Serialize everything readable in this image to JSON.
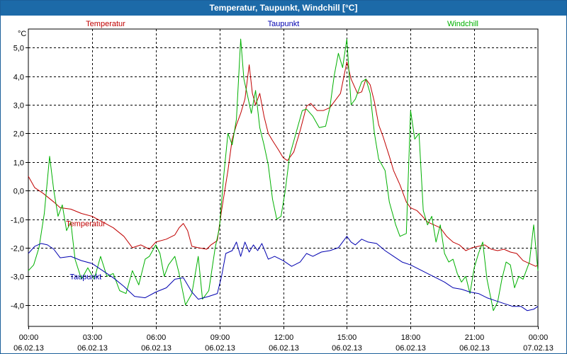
{
  "window": {
    "title": "Temperatur, Taupunkt, Windchill [°C]"
  },
  "chart_data": {
    "type": "line",
    "title": "Temperatur, Taupunkt, Windchill [°C]",
    "ylabel": "°C",
    "xlabel": "",
    "ylim": [
      -4.75,
      5.65
    ],
    "xlim": [
      0,
      24
    ],
    "grid": true,
    "yticks": [
      5,
      4,
      3,
      2,
      1,
      0,
      -1,
      -2,
      -3,
      -4
    ],
    "ytick_labels": [
      "5,0",
      "4,0",
      "3,0",
      "2,0",
      "1,0",
      "0,0",
      "-1,0",
      "-2,0",
      "-3,0",
      "-4,0"
    ],
    "xticks": [
      {
        "x": 0,
        "time": "00:00",
        "date": "06.02.13"
      },
      {
        "x": 3,
        "time": "03:00",
        "date": "06.02.13"
      },
      {
        "x": 6,
        "time": "06:00",
        "date": "06.02.13"
      },
      {
        "x": 9,
        "time": "09:00",
        "date": "06.02.13"
      },
      {
        "x": 12,
        "time": "12:00",
        "date": "06.02.13"
      },
      {
        "x": 15,
        "time": "15:00",
        "date": "06.02.13"
      },
      {
        "x": 18,
        "time": "18:00",
        "date": "06.02.13"
      },
      {
        "x": 21,
        "time": "21:00",
        "date": "06.02.13"
      },
      {
        "x": 24,
        "time": "00:00",
        "date": "07.02.13"
      }
    ],
    "legend": [
      {
        "name": "Temperatur",
        "color": "#c00000",
        "position": "top-left"
      },
      {
        "name": "Taupunkt",
        "color": "#0000b0",
        "position": "top-center"
      },
      {
        "name": "Windchill",
        "color": "#00b000",
        "position": "top-right"
      }
    ],
    "annotations": [
      {
        "text": "Temperatur",
        "x": 2.7,
        "y": -1.25,
        "color": "#c00000"
      },
      {
        "text": "Taupunkt",
        "x": 2.7,
        "y": -3.1,
        "color": "#0000b0"
      }
    ],
    "series": [
      {
        "name": "Temperatur",
        "color": "#c00000",
        "points": [
          [
            0,
            0.5
          ],
          [
            0.3,
            0.1
          ],
          [
            0.7,
            -0.1
          ],
          [
            1.2,
            -0.4
          ],
          [
            1.5,
            -0.6
          ],
          [
            2,
            -0.65
          ],
          [
            2.5,
            -0.8
          ],
          [
            3,
            -0.9
          ],
          [
            3.5,
            -1.1
          ],
          [
            4,
            -1.3
          ],
          [
            4.5,
            -1.6
          ],
          [
            4.9,
            -2.0
          ],
          [
            5.3,
            -1.9
          ],
          [
            5.7,
            -2.05
          ],
          [
            6,
            -1.8
          ],
          [
            6.5,
            -1.7
          ],
          [
            6.9,
            -1.55
          ],
          [
            7.1,
            -1.3
          ],
          [
            7.3,
            -1.15
          ],
          [
            7.5,
            -1.4
          ],
          [
            7.7,
            -1.95
          ],
          [
            8,
            -2.0
          ],
          [
            8.4,
            -2.05
          ],
          [
            8.6,
            -1.9
          ],
          [
            8.9,
            -1.75
          ],
          [
            9.1,
            -0.7
          ],
          [
            9.4,
            0.7
          ],
          [
            9.6,
            1.8
          ],
          [
            9.8,
            2.3
          ],
          [
            10,
            2.7
          ],
          [
            10.2,
            3.2
          ],
          [
            10.4,
            4.4
          ],
          [
            10.55,
            3.4
          ],
          [
            10.7,
            3.0
          ],
          [
            10.9,
            3.4
          ],
          [
            11.1,
            2.6
          ],
          [
            11.3,
            2.0
          ],
          [
            11.5,
            1.75
          ],
          [
            11.8,
            1.4
          ],
          [
            12,
            1.15
          ],
          [
            12.2,
            1.05
          ],
          [
            12.5,
            1.35
          ],
          [
            12.8,
            2.1
          ],
          [
            13.1,
            2.95
          ],
          [
            13.3,
            3.05
          ],
          [
            13.6,
            2.8
          ],
          [
            13.9,
            2.8
          ],
          [
            14.2,
            2.9
          ],
          [
            14.5,
            3.2
          ],
          [
            14.7,
            3.4
          ],
          [
            15.0,
            4.5
          ],
          [
            15.2,
            3.9
          ],
          [
            15.5,
            3.4
          ],
          [
            15.7,
            3.45
          ],
          [
            15.9,
            3.9
          ],
          [
            16.1,
            3.7
          ],
          [
            16.3,
            3.1
          ],
          [
            16.5,
            2.3
          ],
          [
            16.7,
            1.9
          ],
          [
            17,
            1.2
          ],
          [
            17.2,
            0.7
          ],
          [
            17.5,
            0.2
          ],
          [
            17.8,
            -0.4
          ],
          [
            18,
            -0.6
          ],
          [
            18.3,
            -0.7
          ],
          [
            18.5,
            -0.85
          ],
          [
            18.8,
            -1.1
          ],
          [
            19.1,
            -1.2
          ],
          [
            19.4,
            -1.3
          ],
          [
            19.7,
            -1.6
          ],
          [
            20,
            -1.8
          ],
          [
            20.3,
            -1.9
          ],
          [
            20.6,
            -2.1
          ],
          [
            20.9,
            -2.0
          ],
          [
            21.2,
            -1.95
          ],
          [
            21.5,
            -1.9
          ],
          [
            21.8,
            -2.05
          ],
          [
            22.1,
            -2.1
          ],
          [
            22.4,
            -2.05
          ],
          [
            22.7,
            -2.15
          ],
          [
            23,
            -2.2
          ],
          [
            23.3,
            -2.45
          ],
          [
            23.6,
            -2.55
          ],
          [
            23.9,
            -2.65
          ],
          [
            24,
            -2.6
          ]
        ]
      },
      {
        "name": "Taupunkt",
        "color": "#0000b0",
        "points": [
          [
            0,
            -2.2
          ],
          [
            0.3,
            -1.95
          ],
          [
            0.6,
            -1.85
          ],
          [
            0.9,
            -1.9
          ],
          [
            1.2,
            -2.05
          ],
          [
            1.5,
            -2.35
          ],
          [
            2,
            -2.3
          ],
          [
            2.5,
            -2.45
          ],
          [
            3,
            -2.55
          ],
          [
            3.5,
            -2.8
          ],
          [
            4,
            -3.05
          ],
          [
            4.5,
            -3.35
          ],
          [
            5,
            -3.7
          ],
          [
            5.5,
            -3.75
          ],
          [
            6,
            -3.55
          ],
          [
            6.5,
            -3.4
          ],
          [
            6.9,
            -3.1
          ],
          [
            7.3,
            -3.05
          ],
          [
            7.7,
            -3.55
          ],
          [
            8,
            -3.8
          ],
          [
            8.5,
            -3.7
          ],
          [
            8.9,
            -3.6
          ],
          [
            9.1,
            -3.0
          ],
          [
            9.3,
            -2.2
          ],
          [
            9.6,
            -2.1
          ],
          [
            9.8,
            -1.8
          ],
          [
            10.0,
            -2.3
          ],
          [
            10.2,
            -1.8
          ],
          [
            10.4,
            -2.15
          ],
          [
            10.6,
            -1.9
          ],
          [
            10.8,
            -2.1
          ],
          [
            11.0,
            -1.85
          ],
          [
            11.3,
            -2.4
          ],
          [
            11.6,
            -2.3
          ],
          [
            12,
            -2.45
          ],
          [
            12.4,
            -2.65
          ],
          [
            12.8,
            -2.5
          ],
          [
            13.1,
            -2.2
          ],
          [
            13.4,
            -2.3
          ],
          [
            13.8,
            -2.15
          ],
          [
            14.2,
            -2.1
          ],
          [
            14.6,
            -2.0
          ],
          [
            15.0,
            -1.6
          ],
          [
            15.2,
            -1.8
          ],
          [
            15.4,
            -1.9
          ],
          [
            15.7,
            -1.7
          ],
          [
            16,
            -1.8
          ],
          [
            16.4,
            -1.85
          ],
          [
            16.8,
            -2.1
          ],
          [
            17.2,
            -2.3
          ],
          [
            17.6,
            -2.5
          ],
          [
            18,
            -2.6
          ],
          [
            18.4,
            -2.75
          ],
          [
            18.8,
            -2.9
          ],
          [
            19.2,
            -3.05
          ],
          [
            19.6,
            -3.2
          ],
          [
            20,
            -3.4
          ],
          [
            20.4,
            -3.45
          ],
          [
            20.8,
            -3.55
          ],
          [
            21.2,
            -3.6
          ],
          [
            21.6,
            -3.75
          ],
          [
            22,
            -3.85
          ],
          [
            22.4,
            -3.95
          ],
          [
            22.8,
            -4.05
          ],
          [
            23.2,
            -4.05
          ],
          [
            23.5,
            -4.2
          ],
          [
            23.8,
            -4.15
          ],
          [
            24,
            -4.05
          ]
        ]
      },
      {
        "name": "Windchill",
        "color": "#00b000",
        "points": [
          [
            0,
            -2.8
          ],
          [
            0.25,
            -2.6
          ],
          [
            0.5,
            -2.0
          ],
          [
            0.75,
            -0.8
          ],
          [
            1.0,
            1.2
          ],
          [
            1.2,
            0.0
          ],
          [
            1.4,
            -0.9
          ],
          [
            1.6,
            -0.5
          ],
          [
            1.8,
            -1.4
          ],
          [
            2.0,
            -1.1
          ],
          [
            2.2,
            -2.4
          ],
          [
            2.5,
            -3.1
          ],
          [
            2.8,
            -2.7
          ],
          [
            3.1,
            -3.1
          ],
          [
            3.4,
            -2.3
          ],
          [
            3.7,
            -3.0
          ],
          [
            4.0,
            -2.9
          ],
          [
            4.3,
            -3.5
          ],
          [
            4.6,
            -3.6
          ],
          [
            4.9,
            -2.8
          ],
          [
            5.2,
            -3.3
          ],
          [
            5.5,
            -2.4
          ],
          [
            5.7,
            -2.3
          ],
          [
            6.0,
            -1.9
          ],
          [
            6.2,
            -2.2
          ],
          [
            6.4,
            -3.0
          ],
          [
            6.6,
            -2.6
          ],
          [
            6.9,
            -2.3
          ],
          [
            7.1,
            -2.9
          ],
          [
            7.4,
            -4.0
          ],
          [
            7.7,
            -3.6
          ],
          [
            8.0,
            -2.3
          ],
          [
            8.2,
            -3.8
          ],
          [
            8.5,
            -3.5
          ],
          [
            8.8,
            -2.0
          ],
          [
            9.0,
            -1.3
          ],
          [
            9.2,
            0.5
          ],
          [
            9.4,
            2.0
          ],
          [
            9.6,
            1.6
          ],
          [
            9.8,
            2.5
          ],
          [
            10.0,
            5.3
          ],
          [
            10.15,
            3.9
          ],
          [
            10.3,
            3.4
          ],
          [
            10.5,
            2.7
          ],
          [
            10.7,
            3.5
          ],
          [
            10.9,
            2.2
          ],
          [
            11.1,
            1.6
          ],
          [
            11.3,
            0.9
          ],
          [
            11.5,
            -0.3
          ],
          [
            11.7,
            -1.0
          ],
          [
            11.9,
            -0.9
          ],
          [
            12.1,
            0.0
          ],
          [
            12.3,
            1.2
          ],
          [
            12.6,
            2.0
          ],
          [
            12.9,
            2.8
          ],
          [
            13.1,
            2.85
          ],
          [
            13.4,
            2.6
          ],
          [
            13.7,
            2.2
          ],
          [
            14.0,
            2.25
          ],
          [
            14.2,
            2.9
          ],
          [
            14.4,
            4.0
          ],
          [
            14.6,
            4.8
          ],
          [
            14.8,
            4.3
          ],
          [
            15.0,
            5.3
          ],
          [
            15.2,
            3.0
          ],
          [
            15.4,
            3.2
          ],
          [
            15.7,
            3.8
          ],
          [
            15.9,
            3.9
          ],
          [
            16.1,
            3.4
          ],
          [
            16.3,
            2.0
          ],
          [
            16.5,
            1.1
          ],
          [
            16.8,
            0.7
          ],
          [
            17.0,
            -0.4
          ],
          [
            17.3,
            -1.2
          ],
          [
            17.5,
            -1.6
          ],
          [
            17.8,
            -1.5
          ],
          [
            18.0,
            2.8
          ],
          [
            18.2,
            1.8
          ],
          [
            18.4,
            2.0
          ],
          [
            18.6,
            -0.7
          ],
          [
            18.8,
            -1.2
          ],
          [
            19.0,
            -0.9
          ],
          [
            19.2,
            -1.8
          ],
          [
            19.4,
            -1.2
          ],
          [
            19.6,
            -2.2
          ],
          [
            19.8,
            -2.5
          ],
          [
            20.0,
            -2.4
          ],
          [
            20.2,
            -2.9
          ],
          [
            20.4,
            -3.2
          ],
          [
            20.6,
            -3.0
          ],
          [
            20.8,
            -3.6
          ],
          [
            21.0,
            -2.7
          ],
          [
            21.2,
            -2.2
          ],
          [
            21.4,
            -1.8
          ],
          [
            21.6,
            -3.1
          ],
          [
            21.9,
            -4.2
          ],
          [
            22.1,
            -3.9
          ],
          [
            22.3,
            -3.1
          ],
          [
            22.5,
            -2.5
          ],
          [
            22.7,
            -2.6
          ],
          [
            22.9,
            -3.4
          ],
          [
            23.1,
            -3.0
          ],
          [
            23.3,
            -3.1
          ],
          [
            23.6,
            -2.5
          ],
          [
            23.8,
            -1.2
          ],
          [
            24.0,
            -2.8
          ]
        ]
      }
    ]
  }
}
